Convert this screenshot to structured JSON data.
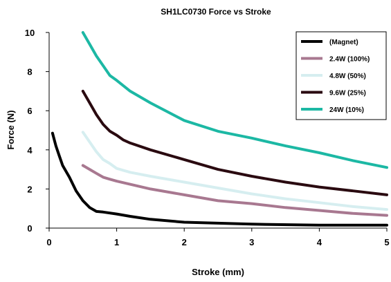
{
  "chart_data": {
    "type": "line",
    "title": "SH1LC0730 Force vs Stroke",
    "xlabel": "Stroke (mm)",
    "ylabel": "Force (N)",
    "xlim": [
      0,
      5
    ],
    "ylim": [
      0,
      10
    ],
    "xticks": [
      "0",
      "1",
      "2",
      "3",
      "4",
      "5"
    ],
    "yticks": [
      "0",
      "2",
      "4",
      "6",
      "8",
      "10"
    ],
    "grid": false,
    "legend_position": "top-right",
    "series": [
      {
        "name": "(Magnet)",
        "color": "#000000",
        "x": [
          0.05,
          0.1,
          0.15,
          0.2,
          0.3,
          0.4,
          0.5,
          0.6,
          0.7,
          0.8,
          1.0,
          1.2,
          1.5,
          2.0,
          2.5,
          3.0,
          4.0,
          5.0
        ],
        "y": [
          4.85,
          4.2,
          3.7,
          3.2,
          2.6,
          1.9,
          1.4,
          1.05,
          0.85,
          0.82,
          0.72,
          0.6,
          0.45,
          0.3,
          0.25,
          0.2,
          0.15,
          0.15
        ]
      },
      {
        "name": "2.4W (100%)",
        "color": "#a87890",
        "x": [
          0.5,
          0.6,
          0.7,
          0.8,
          0.9,
          1.0,
          1.5,
          2.0,
          2.5,
          3.0,
          3.5,
          4.0,
          4.5,
          5.0
        ],
        "y": [
          3.2,
          3.0,
          2.8,
          2.6,
          2.5,
          2.4,
          2.0,
          1.7,
          1.4,
          1.25,
          1.05,
          0.9,
          0.75,
          0.65
        ]
      },
      {
        "name": "4.8W (50%)",
        "color": "#d6eef0",
        "x": [
          0.5,
          0.6,
          0.7,
          0.8,
          0.9,
          1.0,
          1.2,
          1.5,
          2.0,
          2.5,
          3.0,
          3.5,
          4.0,
          4.5,
          5.0
        ],
        "y": [
          4.9,
          4.4,
          3.9,
          3.5,
          3.3,
          3.05,
          2.85,
          2.65,
          2.35,
          2.05,
          1.75,
          1.5,
          1.3,
          1.1,
          0.95
        ]
      },
      {
        "name": "9.6W (25%)",
        "color": "#2a0a10",
        "x": [
          0.5,
          0.6,
          0.7,
          0.8,
          0.9,
          1.0,
          1.1,
          1.2,
          1.5,
          2.0,
          2.5,
          3.0,
          3.5,
          4.0,
          4.5,
          5.0
        ],
        "y": [
          7.0,
          6.4,
          5.8,
          5.3,
          4.95,
          4.75,
          4.5,
          4.35,
          4.0,
          3.5,
          3.0,
          2.65,
          2.35,
          2.1,
          1.9,
          1.7
        ]
      },
      {
        "name": "24W (10%)",
        "color": "#1cb8a4",
        "x": [
          0.5,
          0.6,
          0.7,
          0.8,
          0.9,
          1.0,
          1.2,
          1.5,
          2.0,
          2.5,
          3.0,
          3.5,
          4.0,
          4.5,
          5.0
        ],
        "y": [
          10.0,
          9.4,
          8.8,
          8.3,
          7.8,
          7.55,
          7.0,
          6.4,
          5.5,
          4.95,
          4.6,
          4.2,
          3.85,
          3.45,
          3.1
        ]
      }
    ]
  }
}
